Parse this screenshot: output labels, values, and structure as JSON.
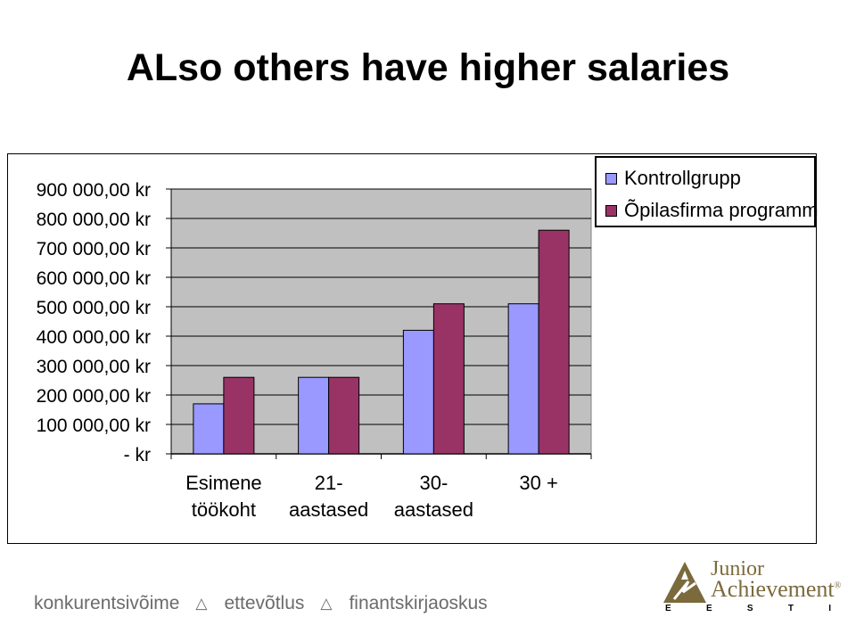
{
  "title": "ALso others have higher salaries",
  "chart_data": {
    "type": "bar",
    "categories": [
      [
        "Esimene",
        "töökoht"
      ],
      [
        "21-",
        "aastased"
      ],
      [
        "30-",
        "aastased"
      ],
      [
        "30 +"
      ]
    ],
    "series": [
      {
        "name": "Kontrollgrupp",
        "color": "#9999FF",
        "values": [
          170000,
          260000,
          420000,
          510000
        ]
      },
      {
        "name": "Õpilasfirma programm",
        "color": "#993366",
        "values": [
          260000,
          260000,
          510000,
          760000
        ]
      }
    ],
    "y_tick_labels": [
      "-     kr",
      "100 000,00 kr",
      "200 000,00 kr",
      "300 000,00 kr",
      "400 000,00 kr",
      "500 000,00 kr",
      "600 000,00 kr",
      "700 000,00 kr",
      "800 000,00 kr",
      "900 000,00 kr"
    ],
    "ylim": [
      0,
      900000
    ],
    "ytick_step": 100000,
    "grid": true,
    "plot_background": "#C0C0C0",
    "legend_position": "top-right"
  },
  "footer": {
    "items": [
      "konkurentsivõime",
      "ettevõtlus",
      "finantskirjaoskus"
    ],
    "separator_icon": "triangle-outline-icon"
  },
  "logo": {
    "line1": "Junior",
    "line2": "Achievement",
    "mark": "®",
    "letters": [
      "E",
      "E",
      "S",
      "T",
      "I"
    ],
    "icon": "ja-pyramid-icon",
    "color": "#7B6A3C"
  }
}
